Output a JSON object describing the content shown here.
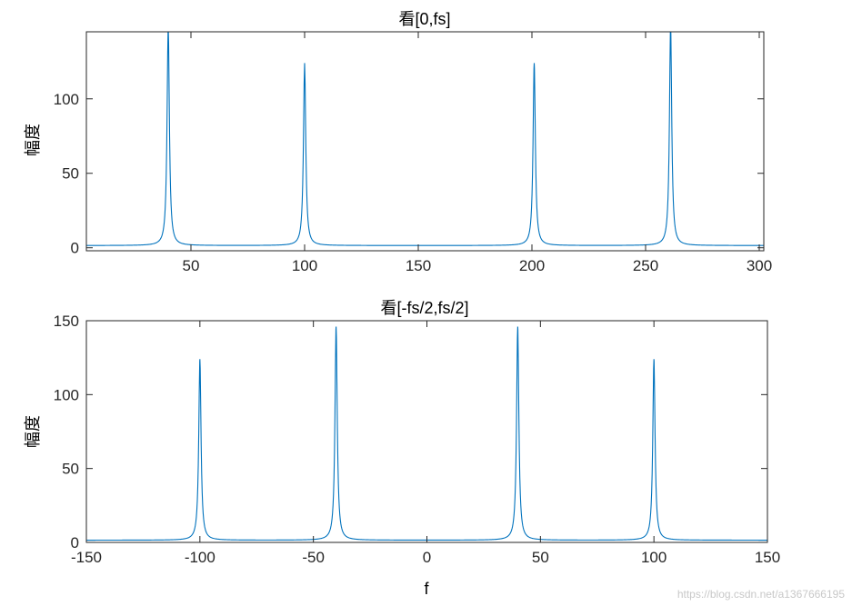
{
  "chart_data": [
    {
      "type": "line",
      "title": "看[0,fs]",
      "xlabel": "",
      "ylabel": "幅度",
      "xlim": [
        4,
        302
      ],
      "ylim": [
        -2,
        145
      ],
      "xticks": [
        50,
        100,
        150,
        200,
        250,
        300
      ],
      "xtick_labels": [
        "50",
        "100",
        "150",
        "200",
        "250",
        "300"
      ],
      "yticks": [
        0,
        50,
        100
      ],
      "ytick_labels": [
        "0",
        "50",
        "100"
      ],
      "grid": false,
      "line_color": "#0072BD",
      "baseline": 1.5,
      "peaks": [
        {
          "x": 40,
          "y": 150
        },
        {
          "x": 100,
          "y": 124
        },
        {
          "x": 201,
          "y": 124
        },
        {
          "x": 261,
          "y": 150
        }
      ]
    },
    {
      "type": "line",
      "title": "看[-fs/2,fs/2]",
      "xlabel": "f",
      "ylabel": "幅度",
      "xlim": [
        -150,
        150
      ],
      "ylim": [
        0,
        150
      ],
      "xticks": [
        -150,
        -100,
        -50,
        0,
        50,
        100,
        150
      ],
      "xtick_labels": [
        "-150",
        "-100",
        "-50",
        "0",
        "50",
        "100",
        "150"
      ],
      "yticks": [
        0,
        50,
        100,
        150
      ],
      "ytick_labels": [
        "0",
        "50",
        "100",
        "150"
      ],
      "grid": false,
      "line_color": "#0072BD",
      "baseline": 1.5,
      "peaks": [
        {
          "x": -100,
          "y": 124
        },
        {
          "x": -40,
          "y": 146
        },
        {
          "x": 40,
          "y": 146
        },
        {
          "x": 100,
          "y": 124
        }
      ]
    }
  ],
  "watermark": "https://blog.csdn.net/a1367666195"
}
